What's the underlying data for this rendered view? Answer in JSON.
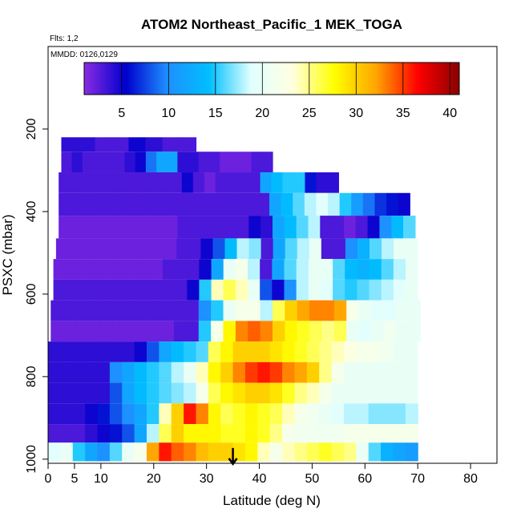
{
  "chart_data": {
    "type": "heatmap",
    "title": "ATOM2 Northeast_Pacific_1 MEK_TOGA",
    "notes": [
      "Flts: 1,2",
      "MMDD: 0126,0129"
    ],
    "xlabel": "Latitude (deg N)",
    "ylabel": "PSXC (mbar)",
    "xlim": [
      0,
      85
    ],
    "ylim": [
      1010,
      0
    ],
    "x_ticks": [
      0,
      5,
      10,
      20,
      30,
      40,
      50,
      60,
      70,
      80
    ],
    "y_ticks": [
      200,
      400,
      600,
      800,
      1000
    ],
    "colorbar": {
      "range": [
        1,
        41
      ],
      "ticks": [
        5,
        10,
        15,
        20,
        25,
        30,
        35,
        40
      ],
      "colors": [
        "#8a2be2",
        "#0000cd",
        "#1e90ff",
        "#00bfff",
        "#e0ffff",
        "#ffffe0",
        "#ffff00",
        "#ffa500",
        "#ff0000",
        "#8b0000"
      ]
    },
    "marker": {
      "latitude": 35,
      "pressure": 1000
    },
    "layers": [
      {
        "p": [
          220,
          255
        ],
        "x": [
          2.5,
          28
        ],
        "v": [
          4,
          4,
          3,
          3,
          5,
          4,
          3,
          3
        ]
      },
      {
        "p": [
          255,
          305
        ],
        "x": [
          2.5,
          42.5
        ],
        "v": [
          3,
          4,
          3,
          3,
          3,
          3,
          4,
          5,
          9,
          12,
          12,
          4,
          4,
          3,
          3,
          2,
          2,
          2,
          3,
          3
        ]
      },
      {
        "p": [
          305,
          355
        ],
        "x": [
          2,
          55
        ],
        "v": [
          3,
          3,
          3,
          3,
          3,
          3,
          3,
          3,
          3,
          3,
          3,
          5,
          3,
          2,
          3,
          3,
          3,
          3,
          12,
          14,
          15,
          15,
          6,
          4,
          4
        ]
      },
      {
        "p": [
          355,
          410
        ],
        "x": [
          2,
          68.5
        ],
        "v": [
          3,
          3,
          3,
          3,
          3,
          3,
          3,
          3,
          3,
          3,
          3,
          3,
          3,
          3,
          3,
          3,
          3,
          3,
          12,
          14,
          16,
          18,
          19,
          18,
          15,
          11,
          9,
          7,
          6,
          5
        ]
      },
      {
        "p": [
          410,
          465
        ],
        "x": [
          2,
          69.5
        ],
        "v": [
          2,
          2,
          2,
          2,
          2,
          2,
          2,
          2,
          2,
          2,
          3,
          3,
          3,
          3,
          3,
          3,
          5,
          4,
          12,
          14,
          16,
          18,
          3,
          3,
          2,
          3,
          5,
          10,
          14,
          16
        ]
      },
      {
        "p": [
          465,
          515
        ],
        "x": [
          1.5,
          70
        ],
        "v": [
          2,
          2,
          2,
          2,
          2,
          2,
          2,
          2,
          2,
          2,
          3,
          3,
          5,
          8,
          14,
          18,
          17,
          3,
          12,
          16,
          18,
          20,
          3,
          3,
          10,
          13,
          16,
          18,
          20,
          20
        ]
      },
      {
        "p": [
          515,
          565
        ],
        "x": [
          1,
          70
        ],
        "v": [
          2,
          2,
          2,
          2,
          2,
          2,
          2,
          2,
          2,
          3,
          3,
          3,
          5,
          12,
          20,
          22,
          18,
          3,
          12,
          16,
          18,
          20,
          20,
          16,
          14,
          13,
          14,
          16,
          18,
          20
        ]
      },
      {
        "p": [
          565,
          615
        ],
        "x": [
          1,
          70
        ],
        "v": [
          3,
          3,
          3,
          3,
          3,
          3,
          3,
          3,
          3,
          3,
          3,
          5,
          15,
          24,
          26,
          24,
          20,
          8,
          5,
          10,
          18,
          20,
          19,
          16,
          15,
          16,
          17,
          18,
          19,
          20
        ]
      },
      {
        "p": [
          615,
          665
        ],
        "x": [
          0.5,
          70.5
        ],
        "v": [
          3,
          3,
          3,
          3,
          3,
          3,
          3,
          3,
          3,
          3,
          3,
          3,
          10,
          15,
          20,
          22,
          22,
          18,
          26,
          30,
          32,
          33,
          33,
          32,
          22,
          20,
          19,
          19,
          20,
          20
        ]
      },
      {
        "p": [
          665,
          715
        ],
        "x": [
          0.5,
          70.5
        ],
        "v": [
          2,
          2,
          2,
          2,
          2,
          2,
          2,
          2,
          2,
          2,
          3,
          3,
          15,
          22,
          28,
          33,
          34,
          33,
          30,
          28,
          27,
          26,
          25,
          26,
          20,
          19,
          20,
          21,
          20,
          20
        ]
      },
      {
        "p": [
          715,
          765
        ],
        "x": [
          0,
          70
        ],
        "v": [
          4,
          4,
          4,
          4,
          4,
          4,
          4,
          5,
          8,
          12,
          14,
          15,
          16,
          26,
          28,
          30,
          30,
          30,
          29,
          28,
          27,
          26,
          25,
          24,
          23,
          22,
          22,
          21,
          20,
          20
        ]
      },
      {
        "p": [
          765,
          815
        ],
        "x": [
          0,
          70
        ],
        "v": [
          4,
          4,
          4,
          4,
          4,
          10,
          12,
          14,
          15,
          16,
          18,
          20,
          24,
          28,
          30,
          33,
          35,
          36,
          35,
          33,
          32,
          30,
          25,
          22,
          20,
          20,
          20,
          20,
          20,
          20
        ]
      },
      {
        "p": [
          815,
          865
        ],
        "x": [
          0,
          70
        ],
        "v": [
          4,
          4,
          4,
          4,
          4,
          8,
          12,
          14,
          15,
          16,
          17,
          18,
          22,
          26,
          28,
          29,
          30,
          30,
          29,
          27,
          25,
          24,
          22,
          20,
          20,
          20,
          20,
          20,
          20,
          20
        ]
      },
      {
        "p": [
          865,
          915
        ],
        "x": [
          0,
          70
        ],
        "v": [
          4,
          4,
          4,
          5,
          6,
          8,
          10,
          12,
          15,
          24,
          30,
          36,
          33,
          28,
          26,
          27,
          28,
          27,
          26,
          24,
          22,
          21,
          20,
          19,
          18,
          18,
          17,
          17,
          17,
          18
        ]
      },
      {
        "p": [
          915,
          960
        ],
        "x": [
          0,
          70
        ],
        "v": [
          3,
          3,
          3,
          4,
          5,
          6,
          8,
          12,
          18,
          26,
          30,
          28,
          28,
          28,
          27,
          27,
          28,
          27,
          25,
          22,
          21,
          21,
          21,
          21,
          22,
          22,
          22,
          22,
          22,
          22
        ]
      },
      {
        "p": [
          960,
          1005
        ],
        "x": [
          0,
          70
        ],
        "v": [
          19,
          20,
          15,
          12,
          10,
          16,
          20,
          22,
          32,
          36,
          34,
          33,
          31,
          30,
          30,
          29,
          28,
          24,
          22,
          24,
          25,
          26,
          27,
          26,
          25,
          20,
          16,
          13,
          12,
          11
        ]
      }
    ]
  }
}
